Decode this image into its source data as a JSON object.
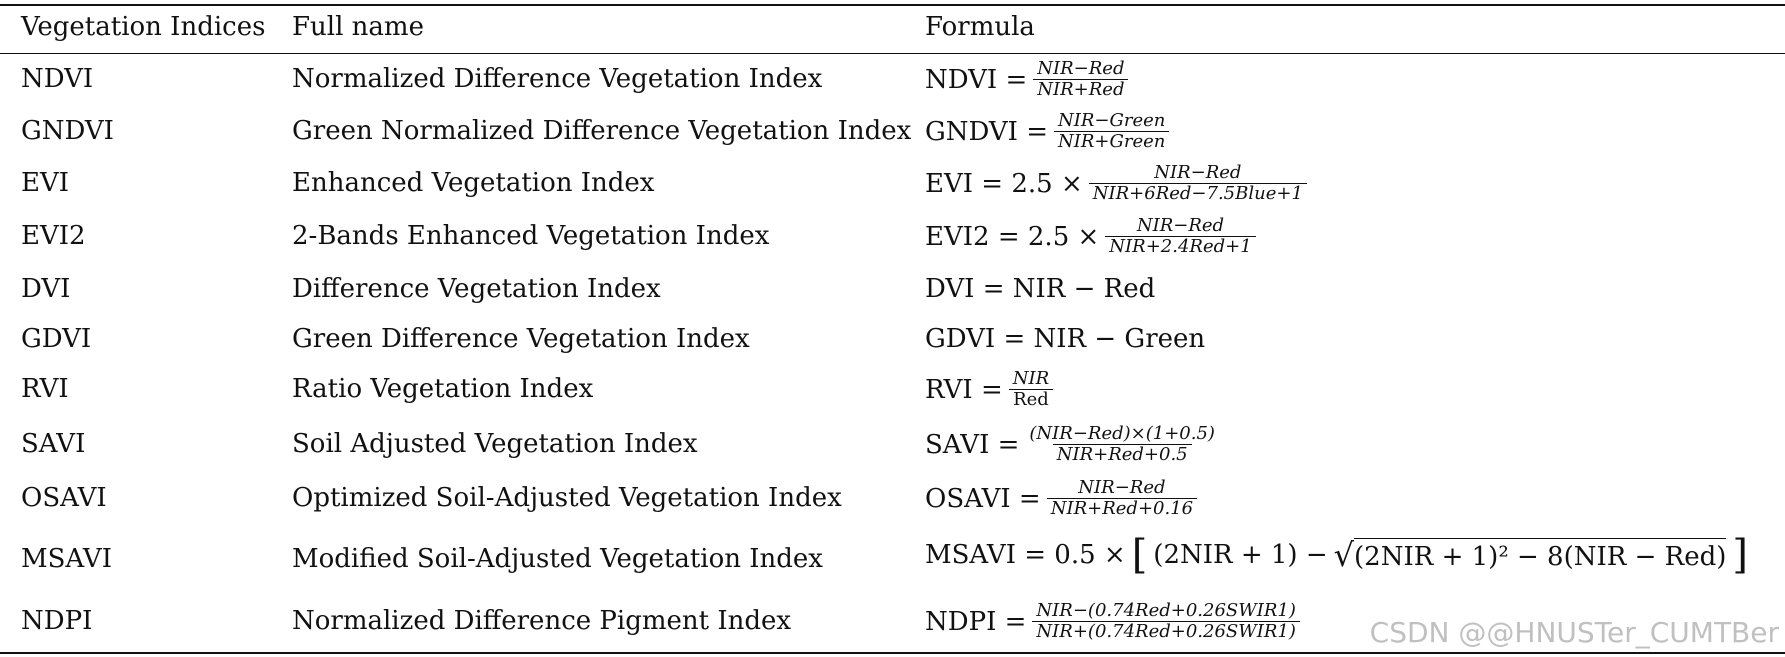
{
  "headers": {
    "col1": "Vegetation Indices",
    "col2": "Full name",
    "col3": "Formula"
  },
  "rows": [
    {
      "abbr": "NDVI",
      "name": "Normalized Difference Vegetation Index",
      "formula_lhs": "NDVI =",
      "num": "NIR−Red",
      "den": "NIR+Red"
    },
    {
      "abbr": "GNDVI",
      "name": "Green Normalized Difference Vegetation Index",
      "formula_lhs": "GNDVI =",
      "num": "NIR−Green",
      "den": "NIR+Green"
    },
    {
      "abbr": "EVI",
      "name": "Enhanced Vegetation Index",
      "formula_lhs": "EVI = 2.5 ×",
      "num": "NIR−Red",
      "den": "NIR+6Red−7.5Blue+1"
    },
    {
      "abbr": "EVI2",
      "name": "2-Bands Enhanced Vegetation Index",
      "formula_lhs": "EVI2 = 2.5 ×",
      "num": "NIR−Red",
      "den": "NIR+2.4Red+1"
    },
    {
      "abbr": "DVI",
      "name": "Difference Vegetation Index",
      "formula_inline": "DVI = NIR − Red"
    },
    {
      "abbr": "GDVI",
      "name": "Green Difference Vegetation Index",
      "formula_inline": "GDVI = NIR − Green"
    },
    {
      "abbr": "RVI",
      "name": "Ratio Vegetation Index",
      "formula_lhs": "RVI =",
      "num": "NIR",
      "den": "Red"
    },
    {
      "abbr": "SAVI",
      "name": "Soil Adjusted Vegetation Index",
      "formula_lhs": "SAVI =",
      "num": "(NIR−Red)×(1+0.5)",
      "den": "NIR+Red+0.5"
    },
    {
      "abbr": "OSAVI",
      "name": "Optimized Soil-Adjusted Vegetation Index",
      "formula_lhs": "OSAVI =",
      "num": "NIR−Red",
      "den": "NIR+Red+0.16"
    },
    {
      "abbr": "MSAVI",
      "name": "Modified Soil-Adjusted Vegetation Index",
      "formula_lhs": "MSAVI = 0.5 ×",
      "bracket_left": "[",
      "term1": "(2NIR + 1) −",
      "radicand": "(2NIR + 1)² − 8(NIR − Red)",
      "bracket_right": "]"
    },
    {
      "abbr": "NDPI",
      "name": "Normalized Difference Pigment Index",
      "formula_lhs": "NDPI =",
      "num": "NIR−(0.74Red+0.26SWIR1)",
      "den": "NIR+(0.74Red+0.26SWIR1)"
    }
  ],
  "watermark": "CSDN @@HNUSTer_CUMTBer"
}
